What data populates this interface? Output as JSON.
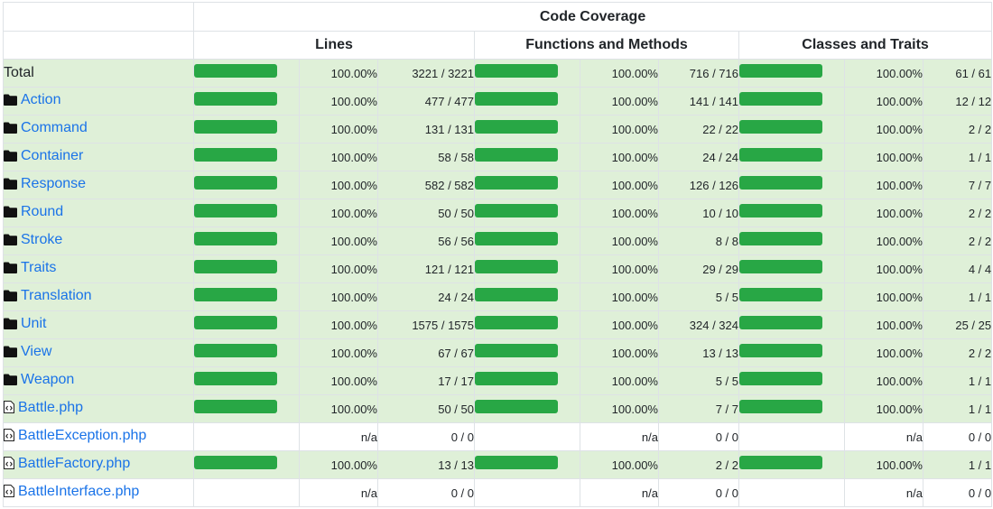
{
  "header": {
    "code_coverage": "Code Coverage",
    "lines": "Lines",
    "functions_and_methods": "Functions and Methods",
    "classes_and_traits": "Classes and Traits"
  },
  "colors": {
    "bar_fill": "#28a745",
    "success_row": "#dff0d8",
    "link": "#1a73e8"
  },
  "rows": [
    {
      "name": "Total",
      "icon": "",
      "type": "total",
      "success": true,
      "lines": {
        "coverage": 1.0,
        "pct": "100.00%",
        "count": "3221 / 3221"
      },
      "functions": {
        "coverage": 1.0,
        "pct": "100.00%",
        "count": "716 / 716"
      },
      "classes": {
        "coverage": 1.0,
        "pct": "100.00%",
        "count": "61 / 61"
      }
    },
    {
      "name": "Action",
      "icon": "folder-icon",
      "type": "dir",
      "success": true,
      "lines": {
        "coverage": 1.0,
        "pct": "100.00%",
        "count": "477 / 477"
      },
      "functions": {
        "coverage": 1.0,
        "pct": "100.00%",
        "count": "141 / 141"
      },
      "classes": {
        "coverage": 1.0,
        "pct": "100.00%",
        "count": "12 / 12"
      }
    },
    {
      "name": "Command",
      "icon": "folder-icon",
      "type": "dir",
      "success": true,
      "lines": {
        "coverage": 1.0,
        "pct": "100.00%",
        "count": "131 / 131"
      },
      "functions": {
        "coverage": 1.0,
        "pct": "100.00%",
        "count": "22 / 22"
      },
      "classes": {
        "coverage": 1.0,
        "pct": "100.00%",
        "count": "2 / 2"
      }
    },
    {
      "name": "Container",
      "icon": "folder-icon",
      "type": "dir",
      "success": true,
      "lines": {
        "coverage": 1.0,
        "pct": "100.00%",
        "count": "58 / 58"
      },
      "functions": {
        "coverage": 1.0,
        "pct": "100.00%",
        "count": "24 / 24"
      },
      "classes": {
        "coverage": 1.0,
        "pct": "100.00%",
        "count": "1 / 1"
      }
    },
    {
      "name": "Response",
      "icon": "folder-icon",
      "type": "dir",
      "success": true,
      "lines": {
        "coverage": 1.0,
        "pct": "100.00%",
        "count": "582 / 582"
      },
      "functions": {
        "coverage": 1.0,
        "pct": "100.00%",
        "count": "126 / 126"
      },
      "classes": {
        "coverage": 1.0,
        "pct": "100.00%",
        "count": "7 / 7"
      }
    },
    {
      "name": "Round",
      "icon": "folder-icon",
      "type": "dir",
      "success": true,
      "lines": {
        "coverage": 1.0,
        "pct": "100.00%",
        "count": "50 / 50"
      },
      "functions": {
        "coverage": 1.0,
        "pct": "100.00%",
        "count": "10 / 10"
      },
      "classes": {
        "coverage": 1.0,
        "pct": "100.00%",
        "count": "2 / 2"
      }
    },
    {
      "name": "Stroke",
      "icon": "folder-icon",
      "type": "dir",
      "success": true,
      "lines": {
        "coverage": 1.0,
        "pct": "100.00%",
        "count": "56 / 56"
      },
      "functions": {
        "coverage": 1.0,
        "pct": "100.00%",
        "count": "8 / 8"
      },
      "classes": {
        "coverage": 1.0,
        "pct": "100.00%",
        "count": "2 / 2"
      }
    },
    {
      "name": "Traits",
      "icon": "folder-icon",
      "type": "dir",
      "success": true,
      "lines": {
        "coverage": 1.0,
        "pct": "100.00%",
        "count": "121 / 121"
      },
      "functions": {
        "coverage": 1.0,
        "pct": "100.00%",
        "count": "29 / 29"
      },
      "classes": {
        "coverage": 1.0,
        "pct": "100.00%",
        "count": "4 / 4"
      }
    },
    {
      "name": "Translation",
      "icon": "folder-icon",
      "type": "dir",
      "success": true,
      "lines": {
        "coverage": 1.0,
        "pct": "100.00%",
        "count": "24 / 24"
      },
      "functions": {
        "coverage": 1.0,
        "pct": "100.00%",
        "count": "5 / 5"
      },
      "classes": {
        "coverage": 1.0,
        "pct": "100.00%",
        "count": "1 / 1"
      }
    },
    {
      "name": "Unit",
      "icon": "folder-icon",
      "type": "dir",
      "success": true,
      "lines": {
        "coverage": 1.0,
        "pct": "100.00%",
        "count": "1575 / 1575"
      },
      "functions": {
        "coverage": 1.0,
        "pct": "100.00%",
        "count": "324 / 324"
      },
      "classes": {
        "coverage": 1.0,
        "pct": "100.00%",
        "count": "25 / 25"
      }
    },
    {
      "name": "View",
      "icon": "folder-icon",
      "type": "dir",
      "success": true,
      "lines": {
        "coverage": 1.0,
        "pct": "100.00%",
        "count": "67 / 67"
      },
      "functions": {
        "coverage": 1.0,
        "pct": "100.00%",
        "count": "13 / 13"
      },
      "classes": {
        "coverage": 1.0,
        "pct": "100.00%",
        "count": "2 / 2"
      }
    },
    {
      "name": "Weapon",
      "icon": "folder-icon",
      "type": "dir",
      "success": true,
      "lines": {
        "coverage": 1.0,
        "pct": "100.00%",
        "count": "17 / 17"
      },
      "functions": {
        "coverage": 1.0,
        "pct": "100.00%",
        "count": "5 / 5"
      },
      "classes": {
        "coverage": 1.0,
        "pct": "100.00%",
        "count": "1 / 1"
      }
    },
    {
      "name": "Battle.php",
      "icon": "code-file-icon",
      "type": "file",
      "success": true,
      "lines": {
        "coverage": 1.0,
        "pct": "100.00%",
        "count": "50 / 50"
      },
      "functions": {
        "coverage": 1.0,
        "pct": "100.00%",
        "count": "7 / 7"
      },
      "classes": {
        "coverage": 1.0,
        "pct": "100.00%",
        "count": "1 / 1"
      }
    },
    {
      "name": "BattleException.php",
      "icon": "code-file-icon",
      "type": "file",
      "success": false,
      "lines": {
        "coverage": null,
        "pct": "n/a",
        "count": "0 / 0"
      },
      "functions": {
        "coverage": null,
        "pct": "n/a",
        "count": "0 / 0"
      },
      "classes": {
        "coverage": null,
        "pct": "n/a",
        "count": "0 / 0"
      }
    },
    {
      "name": "BattleFactory.php",
      "icon": "code-file-icon",
      "type": "file",
      "success": true,
      "lines": {
        "coverage": 1.0,
        "pct": "100.00%",
        "count": "13 / 13"
      },
      "functions": {
        "coverage": 1.0,
        "pct": "100.00%",
        "count": "2 / 2"
      },
      "classes": {
        "coverage": 1.0,
        "pct": "100.00%",
        "count": "1 / 1"
      }
    },
    {
      "name": "BattleInterface.php",
      "icon": "code-file-icon",
      "type": "file",
      "success": false,
      "lines": {
        "coverage": null,
        "pct": "n/a",
        "count": "0 / 0"
      },
      "functions": {
        "coverage": null,
        "pct": "n/a",
        "count": "0 / 0"
      },
      "classes": {
        "coverage": null,
        "pct": "n/a",
        "count": "0 / 0"
      }
    }
  ]
}
